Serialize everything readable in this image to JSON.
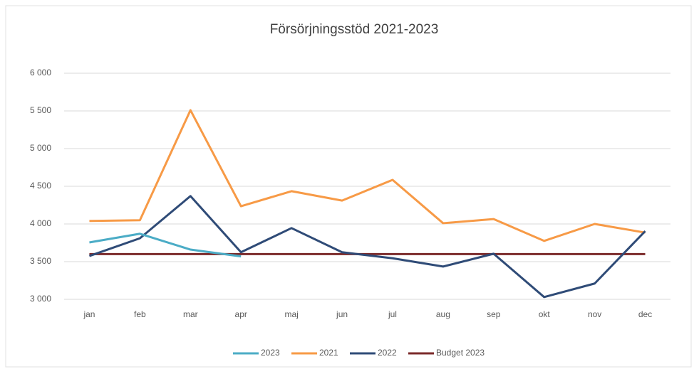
{
  "chart_data": {
    "type": "line",
    "title": "Försörjningsstöd 2021-2023",
    "categories": [
      "jan",
      "feb",
      "mar",
      "apr",
      "maj",
      "jun",
      "jul",
      "aug",
      "sep",
      "okt",
      "nov",
      "dec"
    ],
    "series": [
      {
        "name": "2023",
        "color": "#4bacc6",
        "values": [
          3755,
          3870,
          3660,
          3570,
          null,
          null,
          null,
          null,
          null,
          null,
          null,
          null
        ]
      },
      {
        "name": "2021",
        "color": "#f79a46",
        "values": [
          4040,
          4050,
          5510,
          4235,
          4435,
          4310,
          4585,
          4010,
          4065,
          3775,
          4000,
          3885
        ]
      },
      {
        "name": "2022",
        "color": "#2f4b77",
        "values": [
          3575,
          3810,
          4370,
          3625,
          3945,
          3625,
          3545,
          3435,
          3605,
          3030,
          3210,
          3905
        ]
      },
      {
        "name": "Budget 2023",
        "color": "#7b2a2a",
        "values": [
          3600,
          3600,
          3600,
          3600,
          3600,
          3600,
          3600,
          3600,
          3600,
          3600,
          3600,
          3600
        ]
      }
    ],
    "ylim": [
      3000,
      6000
    ],
    "yticks": [
      {
        "value": 3000,
        "label": "3 000"
      },
      {
        "value": 3500,
        "label": "3 500"
      },
      {
        "value": 4000,
        "label": "4 000"
      },
      {
        "value": 4500,
        "label": "4 500"
      },
      {
        "value": 5000,
        "label": "5 000"
      },
      {
        "value": 5500,
        "label": "5 500"
      },
      {
        "value": 6000,
        "label": "6 000"
      }
    ],
    "grid": true,
    "legend": "bottom"
  }
}
